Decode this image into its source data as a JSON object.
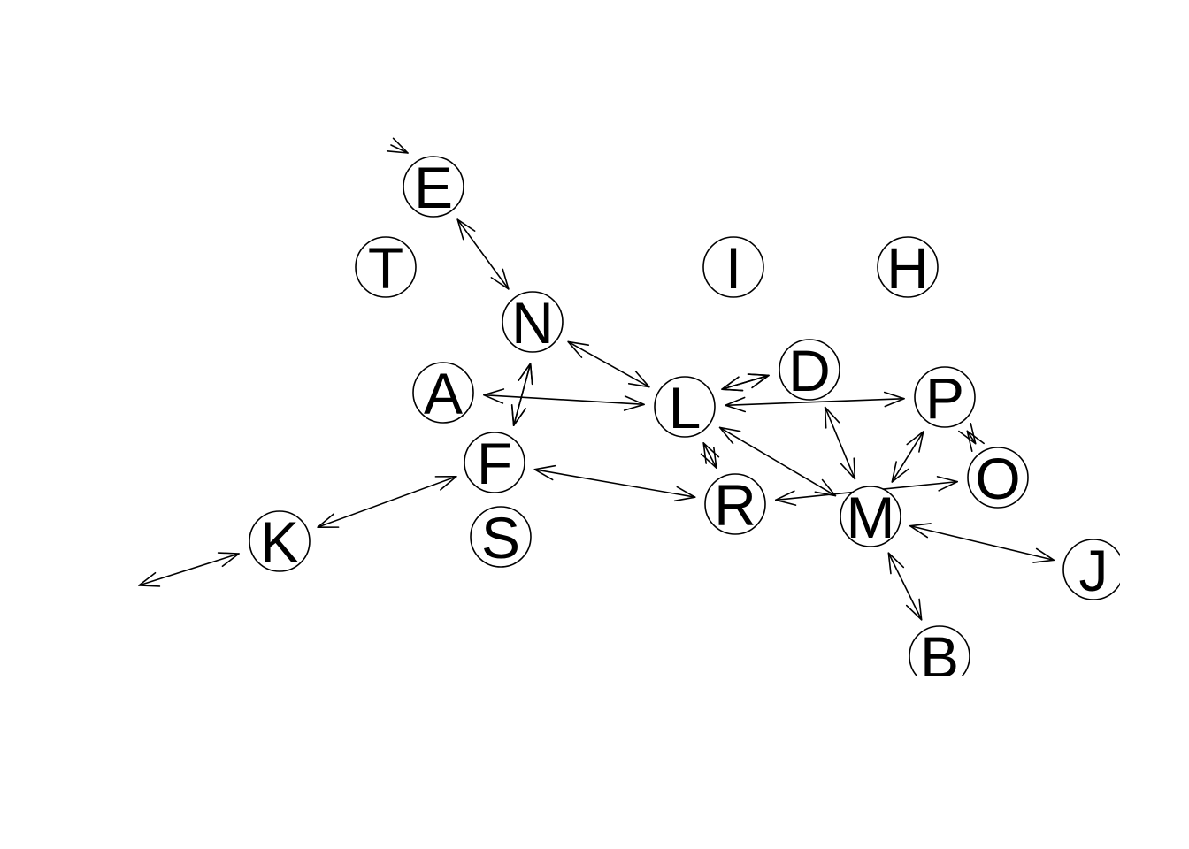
{
  "graph": {
    "nodes": [
      {
        "id": "E",
        "label": "E"
      },
      {
        "id": "T",
        "label": "T"
      },
      {
        "id": "N",
        "label": "N"
      },
      {
        "id": "I",
        "label": "I"
      },
      {
        "id": "H",
        "label": "H"
      },
      {
        "id": "A",
        "label": "A"
      },
      {
        "id": "D",
        "label": "D"
      },
      {
        "id": "L",
        "label": "L"
      },
      {
        "id": "P",
        "label": "P"
      },
      {
        "id": "F",
        "label": "F"
      },
      {
        "id": "O",
        "label": "O"
      },
      {
        "id": "R",
        "label": "R"
      },
      {
        "id": "M",
        "label": "M"
      },
      {
        "id": "S",
        "label": "S"
      },
      {
        "id": "K",
        "label": "K"
      },
      {
        "id": "J",
        "label": "J"
      },
      {
        "id": "B",
        "label": "B"
      }
    ],
    "edges": [
      {
        "source": "E",
        "target": "N",
        "directed": "both"
      },
      {
        "source": "N",
        "target": "L",
        "directed": "both"
      },
      {
        "source": "N",
        "target": "F",
        "directed": "both"
      },
      {
        "source": "F",
        "target": "N",
        "directed": "both"
      },
      {
        "source": "A",
        "target": "L",
        "directed": "both"
      },
      {
        "source": "L",
        "target": "D",
        "directed": "both"
      },
      {
        "source": "D",
        "target": "L",
        "directed": "both"
      },
      {
        "source": "L",
        "target": "P",
        "directed": "both"
      },
      {
        "source": "L",
        "target": "R",
        "directed": "both"
      },
      {
        "source": "L",
        "target": "M",
        "directed": "both"
      },
      {
        "source": "D",
        "target": "M",
        "directed": "both"
      },
      {
        "source": "P",
        "target": "M",
        "directed": "both"
      },
      {
        "source": "P",
        "target": "O",
        "directed": "both"
      },
      {
        "source": "R",
        "target": "O",
        "directed": "both"
      },
      {
        "source": "F",
        "target": "R",
        "directed": "both"
      },
      {
        "source": "F",
        "target": "K",
        "directed": "both"
      },
      {
        "source": "M",
        "target": "J",
        "directed": "both"
      },
      {
        "source": "M",
        "target": "B",
        "directed": "both"
      }
    ]
  }
}
